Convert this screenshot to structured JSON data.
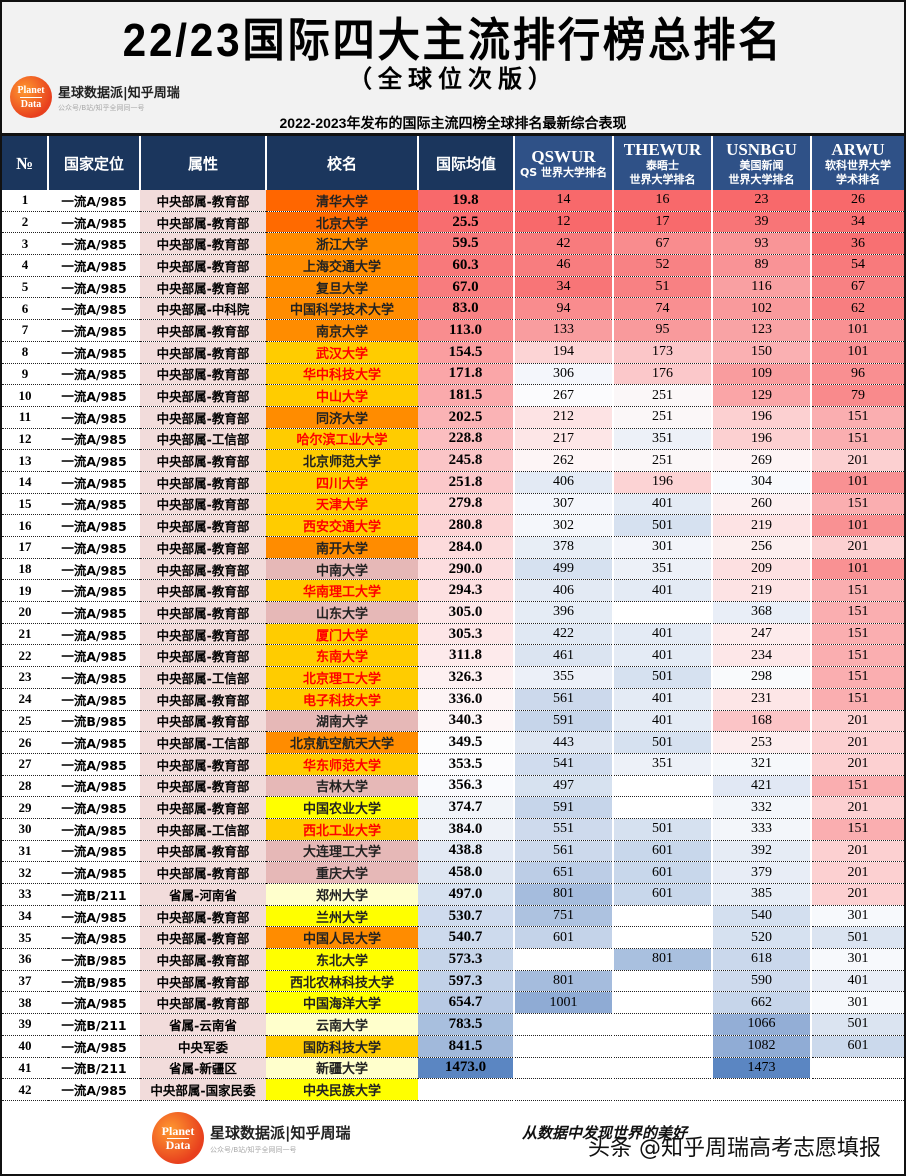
{
  "header": {
    "title": "22/23国际四大主流排行榜总排名",
    "subtitle": "（全球位次版）",
    "description": "2022-2023年发布的国际主流四榜全球排名最新综合表现",
    "brand": {
      "logo_top": "Planet",
      "logo_bottom": "Data",
      "name": "星球数据派|知乎周瑞",
      "sub": "公众号/B站/知乎全网同一号"
    }
  },
  "columns": {
    "no": "№",
    "position": "国家定位",
    "attribute": "属性",
    "school": "校名",
    "average": "国际均值",
    "qs": {
      "code": "QSWUR",
      "line1": "QS 世界大学排名",
      "line2": ""
    },
    "the": {
      "code": "THEWUR",
      "line1": "泰晤士",
      "line2": "世界大学排名"
    },
    "usn": {
      "code": "USNBGU",
      "line1": "美国新闻",
      "line2": "世界大学排名"
    },
    "arwu": {
      "code": "ARWU",
      "line1": "软科世界大学",
      "line2": "学术排名"
    }
  },
  "footer": {
    "brand": {
      "logo_top": "Planet",
      "logo_bottom": "Data",
      "name": "星球数据派|知乎周瑞",
      "sub": "公众号/B站/知乎全网同一号"
    },
    "slogan": "从数据中发现世界的美好",
    "watermark": "头条 @知乎周瑞高考志愿填报"
  },
  "chart_data": {
    "type": "table",
    "title": "22/23国际四大主流排行榜总排名（全球位次版）",
    "subtitle": "2022-2023年发布的国际主流四榜全球排名最新综合表现",
    "columns": [
      "№",
      "国家定位",
      "属性",
      "校名",
      "国际均值",
      "QSWUR",
      "THEWUR",
      "USNBGU",
      "ARWU"
    ],
    "rows": [
      {
        "no": "1",
        "pos": "一流A/985",
        "attr": "中央部属-教育部",
        "name": "清华大学",
        "avg": "19.8",
        "qs": "14",
        "the": "16",
        "usn": "23",
        "arwu": "26",
        "nbg": "#ff6600",
        "nfg": "#222",
        "c": [
          "#f8696b",
          "#f8696b",
          "#f8696b",
          "#f8696b",
          "#f8696b"
        ]
      },
      {
        "no": "2",
        "pos": "一流A/985",
        "attr": "中央部属-教育部",
        "name": "北京大学",
        "avg": "25.5",
        "qs": "12",
        "the": "17",
        "usn": "39",
        "arwu": "34",
        "nbg": "#ff6a00",
        "nfg": "#222",
        "c": [
          "#f86d6f",
          "#f8696b",
          "#f86a6c",
          "#f87577",
          "#f86f71"
        ]
      },
      {
        "no": "3",
        "pos": "一流A/985",
        "attr": "中央部属-教育部",
        "name": "浙江大学",
        "avg": "59.5",
        "qs": "42",
        "the": "67",
        "usn": "93",
        "arwu": "36",
        "nbg": "#ff8c00",
        "nfg": "#222",
        "c": [
          "#f8797b",
          "#f87b7d",
          "#f98c8e",
          "#f99597",
          "#f87072"
        ]
      },
      {
        "no": "4",
        "pos": "一流A/985",
        "attr": "中央部属-教育部",
        "name": "上海交通大学",
        "avg": "60.3",
        "qs": "46",
        "the": "52",
        "usn": "89",
        "arwu": "54",
        "nbg": "#ff8c00",
        "nfg": "#222",
        "c": [
          "#f8797b",
          "#f87d7f",
          "#f88284",
          "#f99396",
          "#f87a7c"
        ]
      },
      {
        "no": "5",
        "pos": "一流A/985",
        "attr": "中央部属-教育部",
        "name": "复旦大学",
        "avg": "67.0",
        "qs": "34",
        "the": "51",
        "usn": "116",
        "arwu": "67",
        "nbg": "#ff8c00",
        "nfg": "#222",
        "c": [
          "#f87c7e",
          "#f87577",
          "#f88183",
          "#f9a0a2",
          "#f88183"
        ]
      },
      {
        "no": "6",
        "pos": "一流A/985",
        "attr": "中央部属-中科院",
        "name": "中国科学技术大学",
        "avg": "83.0",
        "qs": "94",
        "the": "74",
        "usn": "102",
        "arwu": "62",
        "nbg": "#ff8c00",
        "nfg": "#222",
        "c": [
          "#f88284",
          "#f98c8e",
          "#f98f91",
          "#f99a9c",
          "#f87e80"
        ]
      },
      {
        "no": "7",
        "pos": "一流A/985",
        "attr": "中央部属-教育部",
        "name": "南京大学",
        "avg": "113.0",
        "qs": "133",
        "the": "95",
        "usn": "123",
        "arwu": "101",
        "nbg": "#ff8c00",
        "nfg": "#222",
        "c": [
          "#f98d8f",
          "#f99d9f",
          "#f99a9c",
          "#f9a3a5",
          "#f99193"
        ]
      },
      {
        "no": "8",
        "pos": "一流A/985",
        "attr": "中央部属-教育部",
        "name": "武汉大学",
        "avg": "154.5",
        "qs": "194",
        "the": "173",
        "usn": "150",
        "arwu": "101",
        "nbg": "#ffcc00",
        "nfg": "#ff0000",
        "c": [
          "#fa9ea0",
          "#fcd4d5",
          "#fbc6c8",
          "#fab0b2",
          "#f99193"
        ]
      },
      {
        "no": "9",
        "pos": "一流A/985",
        "attr": "中央部属-教育部",
        "name": "华中科技大学",
        "avg": "171.8",
        "qs": "306",
        "the": "176",
        "usn": "109",
        "arwu": "96",
        "nbg": "#ffcc00",
        "nfg": "#ff0000",
        "c": [
          "#faa6a8",
          "#f4f6fb",
          "#fbc8ca",
          "#f99c9e",
          "#f98f91"
        ]
      },
      {
        "no": "10",
        "pos": "一流A/985",
        "attr": "中央部属-教育部",
        "name": "中山大学",
        "avg": "181.5",
        "qs": "267",
        "the": "251",
        "usn": "129",
        "arwu": "79",
        "nbg": "#ffcc00",
        "nfg": "#ff0000",
        "c": [
          "#faaaac",
          "#fbfbfd",
          "#fbf7f8",
          "#faa5a7",
          "#f98a8c"
        ]
      },
      {
        "no": "11",
        "pos": "一流A/985",
        "attr": "中央部属-教育部",
        "name": "同济大学",
        "avg": "202.5",
        "qs": "212",
        "the": "251",
        "usn": "196",
        "arwu": "151",
        "nbg": "#ff8c00",
        "nfg": "#222",
        "c": [
          "#fab3b5",
          "#fde3e4",
          "#fbf7f8",
          "#fcd0d1",
          "#faaeb0"
        ]
      },
      {
        "no": "12",
        "pos": "一流A/985",
        "attr": "中央部属-工信部",
        "name": "哈尔滨工业大学",
        "avg": "228.8",
        "qs": "217",
        "the": "351",
        "usn": "196",
        "arwu": "151",
        "nbg": "#ffcc00",
        "nfg": "#ff0000",
        "c": [
          "#fbbec0",
          "#fde6e7",
          "#edf1f8",
          "#fcd0d1",
          "#faaeb0"
        ]
      },
      {
        "no": "13",
        "pos": "一流A/985",
        "attr": "中央部属-教育部",
        "name": "北京师范大学",
        "avg": "245.8",
        "qs": "262",
        "the": "251",
        "usn": "269",
        "arwu": "201",
        "nbg": "#ffcc00",
        "nfg": "#222",
        "c": [
          "#fbc5c7",
          "#fdf5f6",
          "#fbf7f8",
          "#fdf4f5",
          "#fcd0d1"
        ]
      },
      {
        "no": "14",
        "pos": "一流A/985",
        "attr": "中央部属-教育部",
        "name": "四川大学",
        "avg": "251.8",
        "qs": "406",
        "the": "196",
        "usn": "304",
        "arwu": "101",
        "nbg": "#ffcc00",
        "nfg": "#ff0000",
        "c": [
          "#fbc8ca",
          "#e3eaf4",
          "#fcd3d4",
          "#f8f9fc",
          "#f99193"
        ]
      },
      {
        "no": "15",
        "pos": "一流A/985",
        "attr": "中央部属-教育部",
        "name": "天津大学",
        "avg": "279.8",
        "qs": "307",
        "the": "401",
        "usn": "260",
        "arwu": "151",
        "nbg": "#ffcc00",
        "nfg": "#ff0000",
        "c": [
          "#fcd4d5",
          "#f4f6fb",
          "#e4ebf5",
          "#fcf0f1",
          "#faaeb0"
        ]
      },
      {
        "no": "16",
        "pos": "一流A/985",
        "attr": "中央部属-教育部",
        "name": "西安交通大学",
        "avg": "280.8",
        "qs": "302",
        "the": "501",
        "usn": "219",
        "arwu": "101",
        "nbg": "#ffcc00",
        "nfg": "#ff0000",
        "c": [
          "#fcd4d5",
          "#f5f7fb",
          "#d6e1f0",
          "#fde3e4",
          "#f99193"
        ]
      },
      {
        "no": "17",
        "pos": "一流A/985",
        "attr": "中央部属-教育部",
        "name": "南开大学",
        "avg": "284.0",
        "qs": "378",
        "the": "301",
        "usn": "256",
        "arwu": "201",
        "nbg": "#ff8c00",
        "nfg": "#222",
        "c": [
          "#fcdbdc",
          "#e8eef6",
          "#f3f5fa",
          "#fcefef",
          "#fcd0d1"
        ]
      },
      {
        "no": "18",
        "pos": "一流A/985",
        "attr": "中央部属-教育部",
        "name": "中南大学",
        "avg": "290.0",
        "qs": "499",
        "the": "351",
        "usn": "209",
        "arwu": "101",
        "nbg": "#e6b8b7",
        "nfg": "#222",
        "c": [
          "#fcdddf",
          "#d6e1f0",
          "#edf1f8",
          "#fde0e1",
          "#f99193"
        ]
      },
      {
        "no": "19",
        "pos": "一流A/985",
        "attr": "中央部属-教育部",
        "name": "华南理工大学",
        "avg": "294.3",
        "qs": "406",
        "the": "401",
        "usn": "219",
        "arwu": "151",
        "nbg": "#ffcc00",
        "nfg": "#ff0000",
        "c": [
          "#fde0e1",
          "#e3eaf4",
          "#e4ebf5",
          "#fde3e4",
          "#faaeb0"
        ]
      },
      {
        "no": "20",
        "pos": "一流A/985",
        "attr": "中央部属-教育部",
        "name": "山东大学",
        "avg": "305.0",
        "qs": "396",
        "the": "",
        "usn": "368",
        "arwu": "151",
        "nbg": "#e6b8b7",
        "nfg": "#222",
        "c": [
          "#fde6e7",
          "#e5ecf5",
          "#ffffff",
          "#e9eef7",
          "#faaeb0"
        ]
      },
      {
        "no": "21",
        "pos": "一流A/985",
        "attr": "中央部属-教育部",
        "name": "厦门大学",
        "avg": "305.3",
        "qs": "422",
        "the": "401",
        "usn": "247",
        "arwu": "151",
        "nbg": "#ffcc00",
        "nfg": "#ff0000",
        "c": [
          "#fde6e7",
          "#e0e8f3",
          "#e4ebf5",
          "#fdebec",
          "#faaeb0"
        ]
      },
      {
        "no": "22",
        "pos": "一流A/985",
        "attr": "中央部属-教育部",
        "name": "东南大学",
        "avg": "311.8",
        "qs": "461",
        "the": "401",
        "usn": "234",
        "arwu": "151",
        "nbg": "#ffcc00",
        "nfg": "#ff0000",
        "c": [
          "#fdeaeb",
          "#dbe4f1",
          "#e4ebf5",
          "#fde7e8",
          "#faaeb0"
        ]
      },
      {
        "no": "23",
        "pos": "一流A/985",
        "attr": "中央部属-工信部",
        "name": "北京理工大学",
        "avg": "326.3",
        "qs": "355",
        "the": "501",
        "usn": "298",
        "arwu": "151",
        "nbg": "#ffcc00",
        "nfg": "#ff0000",
        "c": [
          "#fdf0f1",
          "#ecf0f8",
          "#d6e1f0",
          "#f9fafc",
          "#faaeb0"
        ]
      },
      {
        "no": "24",
        "pos": "一流A/985",
        "attr": "中央部属-教育部",
        "name": "电子科技大学",
        "avg": "336.0",
        "qs": "561",
        "the": "401",
        "usn": "231",
        "arwu": "151",
        "nbg": "#ffcc00",
        "nfg": "#ff0000",
        "c": [
          "#fdf4f5",
          "#ccd9ec",
          "#e4ebf5",
          "#fde6e7",
          "#faaeb0"
        ]
      },
      {
        "no": "25",
        "pos": "一流B/985",
        "attr": "中央部属-教育部",
        "name": "湖南大学",
        "avg": "340.3",
        "qs": "591",
        "the": "401",
        "usn": "168",
        "arwu": "201",
        "nbg": "#e6b8b7",
        "nfg": "#222",
        "c": [
          "#fdf6f7",
          "#c6d5ea",
          "#e4ebf5",
          "#fbc4c6",
          "#fcd0d1"
        ]
      },
      {
        "no": "26",
        "pos": "一流A/985",
        "attr": "中央部属-工信部",
        "name": "北京航空航天大学",
        "avg": "349.5",
        "qs": "443",
        "the": "501",
        "usn": "253",
        "arwu": "201",
        "nbg": "#ff8c00",
        "nfg": "#222",
        "c": [
          "#fcfcfd",
          "#dee6f2",
          "#d6e1f0",
          "#fcedee",
          "#fcd0d1"
        ]
      },
      {
        "no": "27",
        "pos": "一流A/985",
        "attr": "中央部属-教育部",
        "name": "华东师范大学",
        "avg": "353.5",
        "qs": "541",
        "the": "351",
        "usn": "321",
        "arwu": "201",
        "nbg": "#ffcc00",
        "nfg": "#ff0000",
        "c": [
          "#fbfbfd",
          "#d0dcee",
          "#edf1f8",
          "#f6f8fb",
          "#fcd0d1"
        ]
      },
      {
        "no": "28",
        "pos": "一流A/985",
        "attr": "中央部属-教育部",
        "name": "吉林大学",
        "avg": "356.3",
        "qs": "497",
        "the": "",
        "usn": "421",
        "arwu": "151",
        "nbg": "#e6b8b7",
        "nfg": "#222",
        "c": [
          "#f9fafd",
          "#d7e2f0",
          "#ffffff",
          "#e1e8f4",
          "#faaeb0"
        ]
      },
      {
        "no": "29",
        "pos": "一流A/985",
        "attr": "中央部属-教育部",
        "name": "中国农业大学",
        "avg": "374.7",
        "qs": "591",
        "the": "",
        "usn": "332",
        "arwu": "201",
        "nbg": "#ffff00",
        "nfg": "#222",
        "c": [
          "#f1f4f9",
          "#c6d5ea",
          "#ffffff",
          "#f3f6fa",
          "#fcd0d1"
        ]
      },
      {
        "no": "30",
        "pos": "一流A/985",
        "attr": "中央部属-工信部",
        "name": "西北工业大学",
        "avg": "384.0",
        "qs": "551",
        "the": "501",
        "usn": "333",
        "arwu": "151",
        "nbg": "#ffcc00",
        "nfg": "#ff0000",
        "c": [
          "#eef2f8",
          "#ceDAed",
          "#d6e1f0",
          "#f3f6fa",
          "#faaeb0"
        ]
      },
      {
        "no": "31",
        "pos": "一流A/985",
        "attr": "中央部属-教育部",
        "name": "大连理工大学",
        "avg": "438.8",
        "qs": "561",
        "the": "601",
        "usn": "392",
        "arwu": "201",
        "nbg": "#e6b8b7",
        "nfg": "#222",
        "c": [
          "#e2e9f4",
          "#ccd9ec",
          "#c8d7eb",
          "#e6ecf5",
          "#fcd0d1"
        ]
      },
      {
        "no": "32",
        "pos": "一流A/985",
        "attr": "中央部属-教育部",
        "name": "重庆大学",
        "avg": "458.0",
        "qs": "651",
        "the": "601",
        "usn": "379",
        "arwu": "201",
        "nbg": "#e6b8b7",
        "nfg": "#222",
        "c": [
          "#dee6f2",
          "#bccde6",
          "#c8d7eb",
          "#e8edf6",
          "#fcd0d1"
        ]
      },
      {
        "no": "33",
        "pos": "一流B/211",
        "attr": "省属-河南省",
        "name": "郑州大学",
        "avg": "497.0",
        "qs": "801",
        "the": "601",
        "usn": "385",
        "arwu": "201",
        "nbg": "#ffffcc",
        "nfg": "#222",
        "c": [
          "#d6e1f0",
          "#a5bcdd",
          "#c8d7eb",
          "#e7edf6",
          "#fcd0d1"
        ]
      },
      {
        "no": "34",
        "pos": "一流A/985",
        "attr": "中央部属-教育部",
        "name": "兰州大学",
        "avg": "530.7",
        "qs": "751",
        "the": "",
        "usn": "540",
        "arwu": "301",
        "nbg": "#ffff00",
        "nfg": "#222",
        "c": [
          "#cfdbee",
          "#adc2e0",
          "#ffffff",
          "#d3dfef",
          "#f7f9fc"
        ]
      },
      {
        "no": "35",
        "pos": "一流A/985",
        "attr": "中央部属-教育部",
        "name": "中国人民大学",
        "avg": "540.7",
        "qs": "601",
        "the": "",
        "usn": "520",
        "arwu": "501",
        "nbg": "#ff8c00",
        "nfg": "#222",
        "c": [
          "#cddaed",
          "#c4d3e9",
          "#ffffff",
          "#d6e1f0",
          "#dbe4f1"
        ]
      },
      {
        "no": "36",
        "pos": "一流B/985",
        "attr": "中央部属-教育部",
        "name": "东北大学",
        "avg": "573.3",
        "qs": "",
        "the": "801",
        "usn": "618",
        "arwu": "301",
        "nbg": "#ffff00",
        "nfg": "#222",
        "c": [
          "#c6d5ea",
          "#ffffff",
          "#a9c0df",
          "#cad8ec",
          "#f7f9fc"
        ]
      },
      {
        "no": "37",
        "pos": "一流B/985",
        "attr": "中央部属-教育部",
        "name": "西北农林科技大学",
        "avg": "597.3",
        "qs": "801",
        "the": "",
        "usn": "590",
        "arwu": "401",
        "nbg": "#ffff00",
        "nfg": "#222",
        "c": [
          "#c1d1e8",
          "#a5bcdd",
          "#ffffff",
          "#cedaed",
          "#e8edf6"
        ]
      },
      {
        "no": "38",
        "pos": "一流A/985",
        "attr": "中央部属-教育部",
        "name": "中国海洋大学",
        "avg": "654.7",
        "qs": "1001",
        "the": "",
        "usn": "662",
        "arwu": "301",
        "nbg": "#ffff00",
        "nfg": "#222",
        "c": [
          "#b7c9e4",
          "#8fabd4",
          "#ffffff",
          "#c6d5ea",
          "#f7f9fc"
        ]
      },
      {
        "no": "39",
        "pos": "一流B/211",
        "attr": "省属-云南省",
        "name": "云南大学",
        "avg": "783.5",
        "qs": "",
        "the": "",
        "usn": "1066",
        "arwu": "501",
        "nbg": "#ffffcc",
        "nfg": "#222",
        "c": [
          "#a8bfde",
          "#ffffff",
          "#ffffff",
          "#93aed6",
          "#dbe4f1"
        ]
      },
      {
        "no": "40",
        "pos": "一流A/985",
        "attr": "中央军委",
        "name": "国防科技大学",
        "avg": "841.5",
        "qs": "",
        "the": "",
        "usn": "1082",
        "arwu": "601",
        "nbg": "#ffcc00",
        "nfg": "#222",
        "c": [
          "#a1b9db",
          "#ffffff",
          "#ffffff",
          "#90acd5",
          "#cbd9ec"
        ]
      },
      {
        "no": "41",
        "pos": "一流B/211",
        "attr": "省属-新疆区",
        "name": "新疆大学",
        "avg": "1473.0",
        "qs": "",
        "the": "",
        "usn": "1473",
        "arwu": "",
        "nbg": "#ffffcc",
        "nfg": "#222",
        "c": [
          "#5b86c2",
          "#ffffff",
          "#ffffff",
          "#5b86c2",
          "#ffffff"
        ]
      },
      {
        "no": "42",
        "pos": "一流A/985",
        "attr": "中央部属-国家民委",
        "name": "中央民族大学",
        "avg": "",
        "qs": "",
        "the": "",
        "usn": "",
        "arwu": "",
        "nbg": "#ffff00",
        "nfg": "#222",
        "c": [
          "#ffffff",
          "#ffffff",
          "#ffffff",
          "#ffffff",
          "#ffffff"
        ]
      }
    ],
    "color_scale": {
      "low_rank": "#f8696b",
      "mid": "#ffffff",
      "high_rank": "#5b86c2"
    }
  }
}
